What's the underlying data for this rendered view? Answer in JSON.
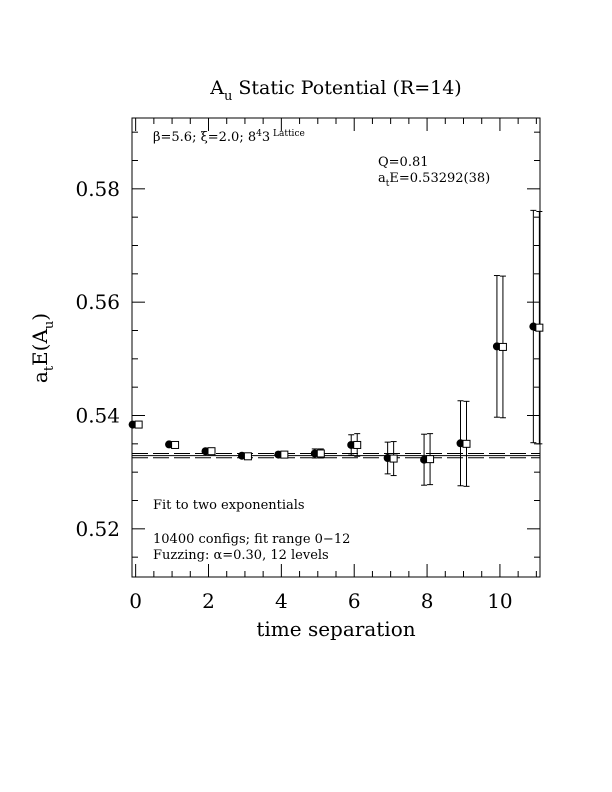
{
  "chart_data": {
    "type": "scatter",
    "title_main": "A",
    "title_sub": "u",
    "title_rest": " Static Potential (R=14)",
    "xlabel": "time separation",
    "ylabel_parts": [
      "a",
      "t",
      "E(A",
      "u",
      ")"
    ],
    "xlim": [
      -0.1,
      11.1
    ],
    "ylim": [
      0.5115,
      0.5925
    ],
    "xticks": [
      0,
      2,
      4,
      6,
      8,
      10
    ],
    "xtick_labels": [
      "0",
      "2",
      "4",
      "6",
      "8",
      "10"
    ],
    "yticks": [
      0.52,
      0.54,
      0.56,
      0.58
    ],
    "ytick_labels": [
      "0.52",
      "0.54",
      "0.56",
      "0.58"
    ],
    "x_minor_step": 0.5,
    "y_minor_step": 0.005,
    "annotations": {
      "lattice_parts": [
        "β=5.6; ξ=2.0; 8",
        "4",
        "3",
        " Lattice"
      ],
      "q_value": "Q=0.81",
      "energy_parts": [
        "a",
        "t",
        "E=0.53292(38)"
      ],
      "fit_note": "Fit to two exponentials",
      "configs_note": "10400 configs; fit range 0−12",
      "fuzzing_note": "Fuzzing: α=0.30, 12 levels"
    },
    "fit": {
      "value": 0.53292,
      "error": 0.00038,
      "x_range": [
        -0.1,
        11.1
      ]
    },
    "series": [
      {
        "marker": "filled-circle",
        "points": [
          {
            "x": 0,
            "y": 0.5384,
            "err": 0.0003
          },
          {
            "x": 1,
            "y": 0.5349,
            "err": 0.0003
          },
          {
            "x": 2,
            "y": 0.5337,
            "err": 0.0003
          },
          {
            "x": 3,
            "y": 0.5329,
            "err": 0.0003
          },
          {
            "x": 4,
            "y": 0.5331,
            "err": 0.0004
          },
          {
            "x": 5,
            "y": 0.5333,
            "err": 0.0008
          },
          {
            "x": 6,
            "y": 0.5348,
            "err": 0.0018
          },
          {
            "x": 7,
            "y": 0.5325,
            "err": 0.0028
          },
          {
            "x": 8,
            "y": 0.5322,
            "err": 0.0045
          },
          {
            "x": 9,
            "y": 0.5351,
            "err": 0.0075
          },
          {
            "x": 10,
            "y": 0.5522,
            "err": 0.0125
          },
          {
            "x": 11,
            "y": 0.5557,
            "err": 0.0205
          }
        ]
      },
      {
        "marker": "open-square",
        "points": [
          {
            "x": 0,
            "y": 0.5384,
            "err": 0.0003
          },
          {
            "x": 1,
            "y": 0.5348,
            "err": 0.0003
          },
          {
            "x": 2,
            "y": 0.5337,
            "err": 0.0003
          },
          {
            "x": 3,
            "y": 0.5328,
            "err": 0.0003
          },
          {
            "x": 4,
            "y": 0.5331,
            "err": 0.0004
          },
          {
            "x": 5,
            "y": 0.5333,
            "err": 0.0008
          },
          {
            "x": 6,
            "y": 0.5348,
            "err": 0.002
          },
          {
            "x": 7,
            "y": 0.5324,
            "err": 0.003
          },
          {
            "x": 8,
            "y": 0.5323,
            "err": 0.0045
          },
          {
            "x": 9,
            "y": 0.535,
            "err": 0.0075
          },
          {
            "x": 10,
            "y": 0.5521,
            "err": 0.0125
          },
          {
            "x": 11,
            "y": 0.5555,
            "err": 0.0205
          }
        ]
      }
    ]
  }
}
